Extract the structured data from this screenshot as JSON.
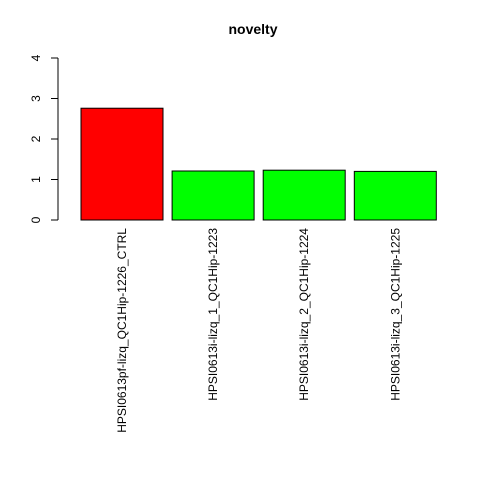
{
  "chart_data": {
    "type": "bar",
    "title": "novelty",
    "categories": [
      "HPSI0613pf-lizq_QC1Hip-1226_CTRL",
      "HPSI0613i-lizq_1_QC1Hip-1223",
      "HPSI0613i-lizq_2_QC1Hip-1224",
      "HPSI0613i-lizq_3_QC1Hip-1225"
    ],
    "values": [
      2.76,
      1.21,
      1.23,
      1.2
    ],
    "colors": [
      "#ff0000",
      "#00ff00",
      "#00ff00",
      "#00ff00"
    ],
    "ylim": [
      0,
      4
    ],
    "yticks": [
      0,
      1,
      2,
      3,
      4
    ],
    "grid": false
  }
}
